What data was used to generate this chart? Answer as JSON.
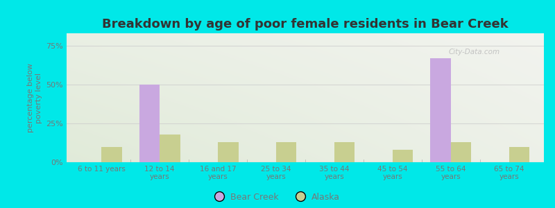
{
  "title": "Breakdown by age of poor female residents in Bear Creek",
  "categories": [
    "6 to 11 years",
    "12 to 14\nyears",
    "16 and 17\nyears",
    "25 to 34\nyears",
    "35 to 44\nyears",
    "45 to 54\nyears",
    "55 to 64\nyears",
    "65 to 74\nyears"
  ],
  "bear_creek": [
    0,
    50,
    0,
    0,
    0,
    0,
    67,
    0
  ],
  "alaska": [
    10,
    18,
    13,
    13,
    13,
    8,
    13,
    10
  ],
  "bear_creek_color": "#c9a8e0",
  "alaska_color": "#c8cf90",
  "ylabel": "percentage below\npoverty level",
  "yticks": [
    0,
    25,
    50,
    75
  ],
  "ytick_labels": [
    "0%",
    "25%",
    "50%",
    "75%"
  ],
  "ylim": [
    0,
    83
  ],
  "background_color": "#00e8e8",
  "title_fontsize": 13,
  "bar_width": 0.35,
  "legend_bear_creek": "Bear Creek",
  "legend_alaska": "Alaska",
  "text_color": "#777777",
  "grid_color": "#cccccc",
  "watermark": "City-Data.com"
}
